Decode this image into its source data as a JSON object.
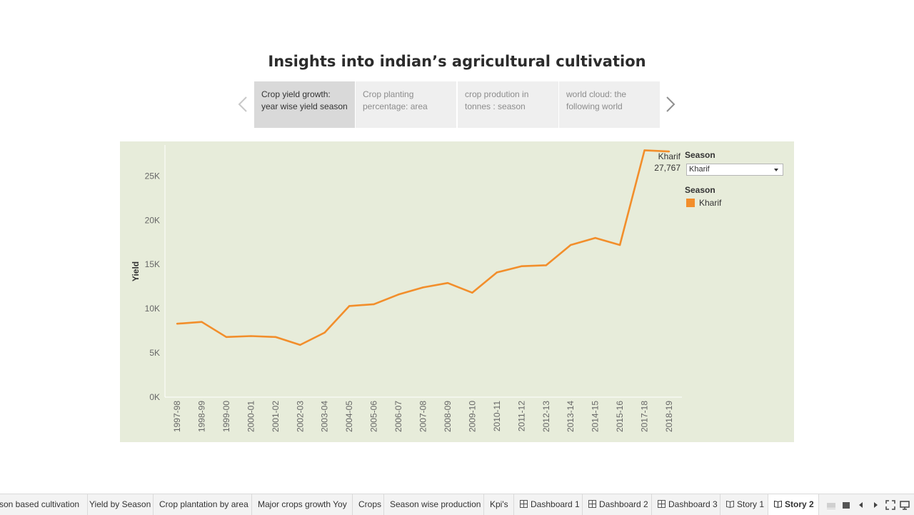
{
  "story": {
    "title": "Insights into indian’s agricultural cultivation",
    "points": [
      {
        "label": "Crop yield growth: year wise yield season",
        "active": true
      },
      {
        "label": "Crop planting percentage: area",
        "active": false
      },
      {
        "label": "crop prodution in tonnes : season",
        "active": false
      },
      {
        "label": "world cloud: the following world",
        "active": false
      }
    ]
  },
  "filter": {
    "title": "Season",
    "selected": "Kharif"
  },
  "legend": {
    "title": "Season",
    "items": [
      {
        "label": "Kharif",
        "color": "#f28e2b"
      }
    ]
  },
  "chart_data": {
    "type": "line",
    "ylabel": "Yield",
    "xlabel": "",
    "ylim": [
      0,
      28500
    ],
    "yticks": [
      0,
      5000,
      10000,
      15000,
      20000,
      25000
    ],
    "ytick_labels": [
      "0K",
      "5K",
      "10K",
      "15K",
      "20K",
      "25K"
    ],
    "categories": [
      "1997-98",
      "1998-99",
      "1999-00",
      "2000-01",
      "2001-02",
      "2002-03",
      "2003-04",
      "2004-05",
      "2005-06",
      "2006-07",
      "2007-08",
      "2008-09",
      "2009-10",
      "2010-11",
      "2011-12",
      "2012-13",
      "2013-14",
      "2014-15",
      "2015-16",
      "2017-18",
      "2018-19"
    ],
    "series": [
      {
        "name": "Kharif",
        "color": "#f28e2b",
        "values": [
          8300,
          8500,
          6800,
          6900,
          6800,
          5900,
          7300,
          10300,
          10500,
          11600,
          12400,
          12900,
          11800,
          14100,
          14800,
          14900,
          17200,
          18000,
          17200,
          27900,
          27767
        ]
      }
    ],
    "annotation": {
      "label": "Kharif",
      "value": "27,767"
    },
    "grid": false,
    "legend_position": "right"
  },
  "tabs": [
    {
      "label": "son based cultivation",
      "icon": "none"
    },
    {
      "label": "Yield by Season",
      "icon": "none"
    },
    {
      "label": "Crop plantation by area",
      "icon": "none"
    },
    {
      "label": "Major crops growth Yoy",
      "icon": "none"
    },
    {
      "label": "Crops",
      "icon": "none"
    },
    {
      "label": "Season wise production",
      "icon": "none"
    },
    {
      "label": "Kpi's",
      "icon": "none"
    },
    {
      "label": "Dashboard 1",
      "icon": "dashboard-icon"
    },
    {
      "label": "Dashboard 2",
      "icon": "dashboard-icon"
    },
    {
      "label": "Dashboard 3",
      "icon": "dashboard-icon"
    },
    {
      "label": "Story 1",
      "icon": "story-icon"
    },
    {
      "label": "Story 2",
      "icon": "story-icon",
      "active": true
    }
  ]
}
